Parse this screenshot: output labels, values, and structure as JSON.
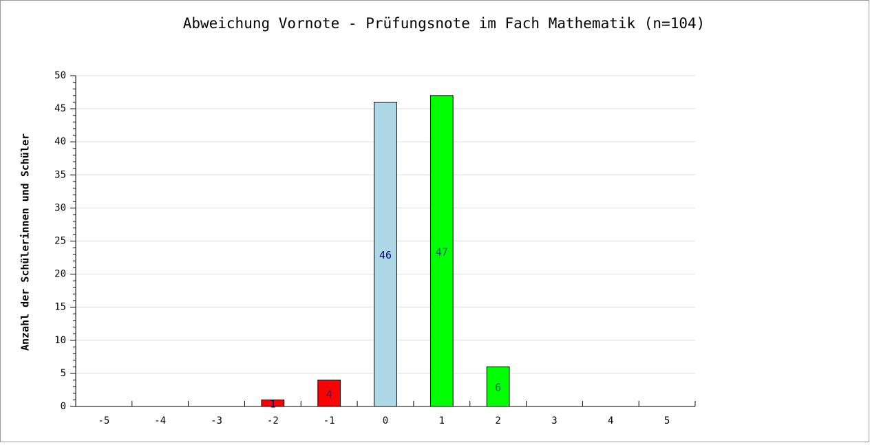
{
  "chart_data": {
    "type": "bar",
    "title": "Abweichung Vornote - Prüfungsnote im Fach Mathematik (n=104)",
    "y_label": "Anzahl der Schülerinnen und Schüler",
    "categories": [
      "-5",
      "-4",
      "-3",
      "-2",
      "-1",
      "0",
      "1",
      "2",
      "3",
      "4",
      "5"
    ],
    "values": [
      0,
      0,
      0,
      1,
      4,
      46,
      47,
      6,
      0,
      0,
      0
    ],
    "colors": [
      "#ff0000",
      "#ff0000",
      "#ff0000",
      "#ff0000",
      "#ff0000",
      "#add8e6",
      "#00ff00",
      "#00ff00",
      "#00ff00",
      "#00ff00",
      "#00ff00"
    ],
    "label_colors": [
      "#000080",
      "#000080",
      "#000080",
      "#000080",
      "#000080",
      "#000080",
      "#006060",
      "#006060",
      "#006060",
      "#006060",
      "#006060"
    ],
    "ylim": [
      0,
      50
    ],
    "yticks": [
      0,
      5,
      10,
      15,
      20,
      25,
      30,
      35,
      40,
      45,
      50
    ],
    "grid": true
  }
}
